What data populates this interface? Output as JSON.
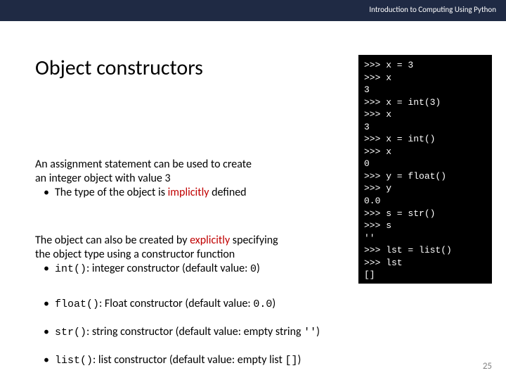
{
  "header": {
    "chapter": "Introduction to Computing Using Python"
  },
  "title": "Object constructors",
  "p1": {
    "l1": "An assignment statement can be used to create",
    "l2": "an integer object with value 3",
    "b1a": "The type of the object is ",
    "b1b": "implicitly",
    "b1c": " defined"
  },
  "p2": {
    "l1a": "The object can also be created by ",
    "l1b": "explicitly",
    "l1c": " specifying",
    "l2": "the object type using a constructor function",
    "b1code": "int()",
    "b1text": ": integer constructor (default value: ",
    "b1val": "0",
    "b1end": ")"
  },
  "p3": {
    "code": "float()",
    "text": ": Float constructor (default value: ",
    "val": "0.0",
    "end": ")"
  },
  "p4": {
    "code": "str()",
    "text": ": string constructor (default value: empty string ",
    "val": "''",
    "end": ")"
  },
  "p5": {
    "code": "list()",
    "text": ": list constructor (default value: empty list ",
    "val": "[]",
    "end": ")"
  },
  "terminal": ">>> x = 3\n>>> x\n3\n>>> x = int(3)\n>>> x\n3\n>>> x = int()\n>>> x\n0\n>>> y = float()\n>>> y\n0.0\n>>> s = str()\n>>> s\n''\n>>> lst = list()\n>>> lst\n[]\n>>>",
  "pageNumber": "25"
}
